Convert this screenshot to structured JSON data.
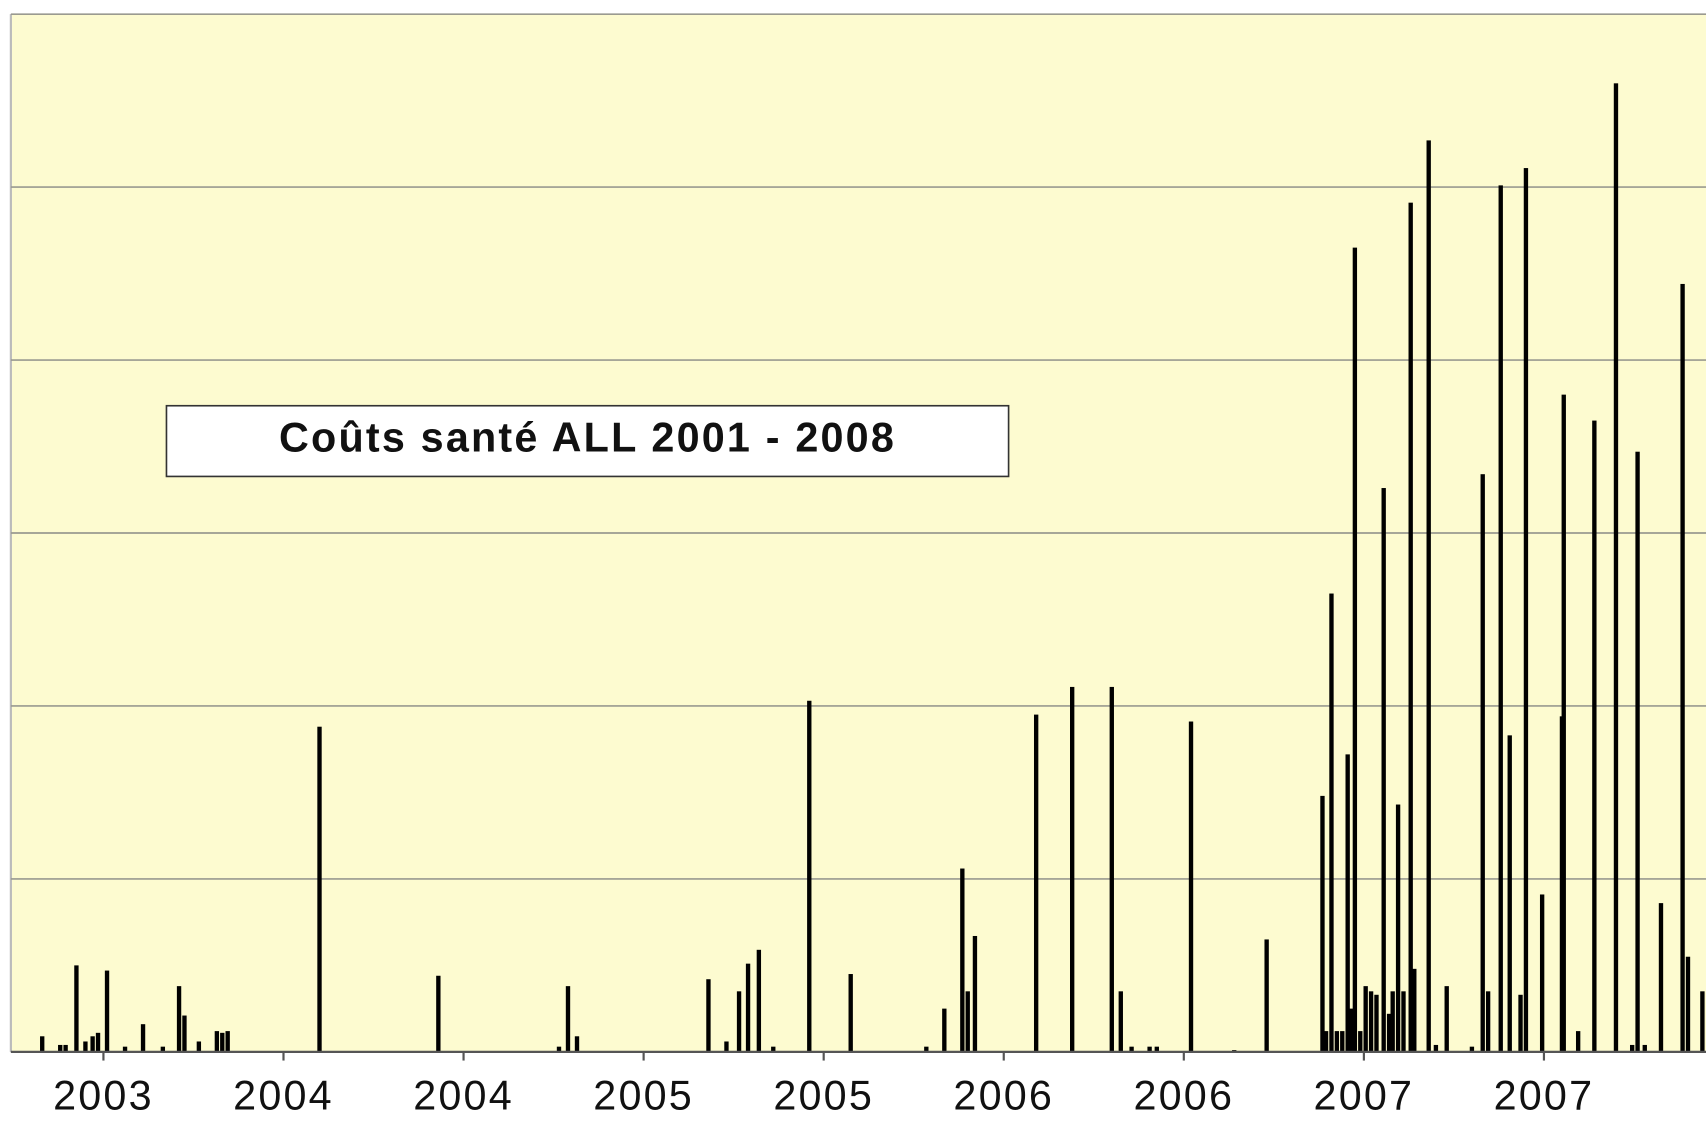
{
  "chart_data": {
    "type": "bar",
    "title": "Coûts santé ALL 2001 - 2008",
    "color": "#000000",
    "background": "#fdfbd0",
    "grid": true,
    "xlim": [
      -0.514,
      8.9
    ],
    "xticks": [
      {
        "value": 0,
        "label": "2003"
      },
      {
        "value": 1,
        "label": "2004"
      },
      {
        "value": 2,
        "label": "2004"
      },
      {
        "value": 3,
        "label": "2005"
      },
      {
        "value": 4,
        "label": "2005"
      },
      {
        "value": 5,
        "label": "2006"
      },
      {
        "value": 6,
        "label": "2006"
      },
      {
        "value": 7,
        "label": "2007"
      },
      {
        "value": 8,
        "label": "2007"
      }
    ],
    "ylim": [
      0,
      6
    ],
    "yticks": [
      0,
      1,
      2,
      3,
      4,
      5,
      6
    ],
    "x": [
      -0.34,
      -0.24,
      -0.21,
      -0.15,
      -0.1,
      -0.06,
      -0.03,
      0.02,
      0.12,
      0.22,
      0.33,
      0.42,
      0.45,
      0.53,
      0.63,
      0.66,
      0.69,
      1.2,
      1.86,
      2.53,
      2.58,
      2.63,
      3.36,
      3.46,
      3.53,
      3.58,
      3.64,
      3.72,
      3.92,
      4.15,
      4.57,
      4.67,
      4.77,
      4.8,
      4.84,
      5.18,
      5.38,
      5.6,
      5.65,
      5.71,
      5.81,
      5.85,
      6.04,
      6.28,
      6.46,
      6.77,
      6.79,
      6.82,
      6.85,
      6.88,
      6.91,
      6.93,
      6.95,
      6.98,
      7.01,
      7.04,
      7.07,
      7.11,
      7.14,
      7.16,
      7.19,
      7.22,
      7.26,
      7.28,
      7.36,
      7.4,
      7.46,
      7.6,
      7.66,
      7.69,
      7.76,
      7.81,
      7.87,
      7.9,
      7.99,
      8.1,
      8.11,
      8.19,
      8.28,
      8.4,
      8.49,
      8.52,
      8.56,
      8.65,
      8.77,
      8.8,
      8.88
    ],
    "values": [
      0.09,
      0.04,
      0.04,
      0.5,
      0.06,
      0.09,
      0.11,
      0.47,
      0.03,
      0.16,
      0.03,
      0.38,
      0.21,
      0.06,
      0.12,
      0.11,
      0.12,
      1.88,
      0.44,
      0.03,
      0.38,
      0.09,
      0.42,
      0.06,
      0.35,
      0.51,
      0.59,
      0.03,
      2.03,
      0.45,
      0.03,
      0.25,
      1.06,
      0.35,
      0.67,
      1.95,
      2.11,
      2.11,
      0.35,
      0.03,
      0.03,
      0.03,
      1.91,
      0.01,
      0.65,
      1.48,
      0.12,
      2.65,
      0.12,
      0.12,
      1.72,
      0.25,
      4.65,
      0.12,
      0.38,
      0.35,
      0.33,
      3.26,
      0.22,
      0.35,
      1.43,
      0.35,
      4.91,
      0.48,
      5.27,
      0.04,
      0.38,
      0.03,
      3.34,
      0.35,
      5.01,
      1.83,
      0.33,
      5.11,
      0.91,
      1.94,
      3.8,
      0.12,
      3.65,
      5.6,
      0.04,
      3.47,
      0.04,
      0.86,
      4.44,
      0.55,
      0.35
    ]
  }
}
